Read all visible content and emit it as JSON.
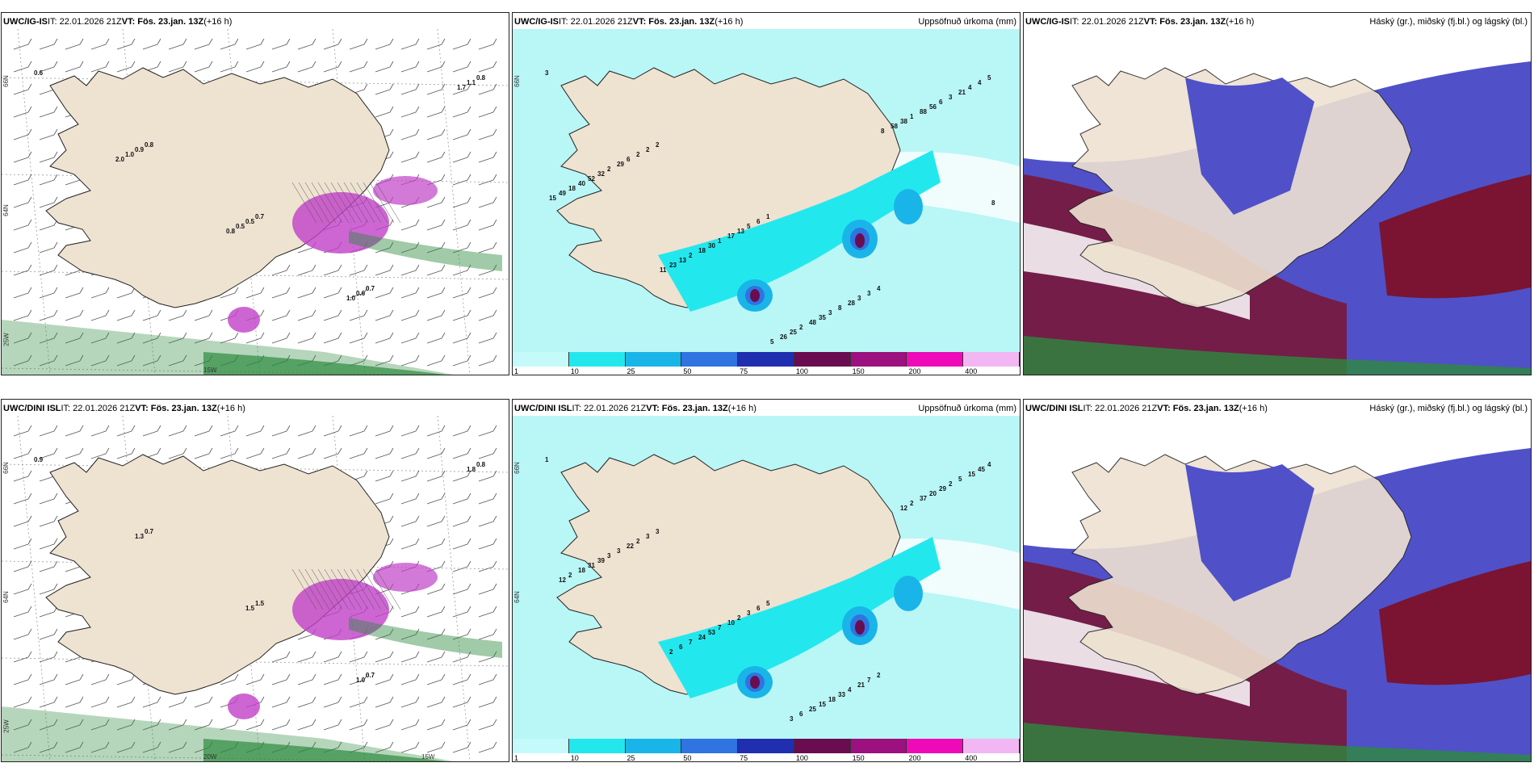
{
  "panels": [
    {
      "model": "UWC/IG-IS",
      "it": " IT: 22.01.2026 21Z ",
      "vt": "VT: Fös. 23.jan. 13Z",
      "lead": " (+16 h)",
      "right_label": "",
      "kind": "wind",
      "lat_labels": [
        "66N",
        "64N",
        "25W"
      ],
      "lon_labels": [
        "15W"
      ],
      "values": [
        "0.6",
        "0.8",
        "0.7",
        "0.7",
        "0.8",
        "0.9",
        "0.5",
        "0.6",
        "1.1",
        "1.0",
        "0.5",
        "1.0",
        "1.7",
        "2.0",
        "0.8"
      ]
    },
    {
      "model": "UWC/IG-IS",
      "it": " IT: 22.01.2026 21Z ",
      "vt": "VT: Fös. 23.jan. 13Z",
      "lead": " (+16 h)",
      "right_label": "Uppsöfnuð úrkoma (mm)",
      "kind": "precip",
      "lat_labels": [
        "66N"
      ],
      "lon_labels": [],
      "values": [
        "3",
        "2",
        "1",
        "4",
        "5",
        "2",
        "6",
        "3",
        "4",
        "2",
        "5",
        "3",
        "4",
        "6",
        "13",
        "28",
        "21",
        "29",
        "17",
        "8",
        "3",
        "2",
        "1",
        "3",
        "6",
        "32",
        "30",
        "35",
        "56",
        "52",
        "18",
        "48",
        "88",
        "40",
        "2",
        "2",
        "1",
        "18",
        "13",
        "25",
        "38",
        "49",
        "23",
        "26",
        "58",
        "15",
        "11",
        "5",
        "8",
        "8"
      ]
    },
    {
      "model": "UWC/IG-IS",
      "it": " IT: 22.01.2026 21Z ",
      "vt": "VT: Fös. 23.jan. 13Z",
      "lead": " (+16 h)",
      "right_label": "Háský (gr.), miðský (fj.bl.) og lágský (bl.)",
      "kind": "cloud",
      "lat_labels": [],
      "lon_labels": [],
      "values": []
    },
    {
      "model": "UWC/DINI ISL",
      "it": " IT: 22.01.2026 21Z ",
      "vt": "VT: Fös. 23.jan. 13Z",
      "lead": " (+16 h)",
      "right_label": "",
      "kind": "wind",
      "lat_labels": [
        "66N",
        "64N",
        "25W"
      ],
      "lon_labels": [
        "20W",
        "15W"
      ],
      "values": [
        "0.9",
        "0.7",
        "1.5",
        "0.7",
        "0.8",
        "1.3",
        "1.5",
        "1.0",
        "1.8"
      ]
    },
    {
      "model": "UWC/DINI ISL",
      "it": " IT: 22.01.2026 21Z ",
      "vt": "VT: Fös. 23.jan. 13Z",
      "lead": " (+16 h)",
      "right_label": "Uppsöfnuð úrkoma (mm)",
      "kind": "precip",
      "lat_labels": [
        "66N",
        "64N"
      ],
      "lon_labels": [],
      "values": [
        "1",
        "3",
        "5",
        "2",
        "4",
        "3",
        "6",
        "7",
        "45",
        "2",
        "3",
        "21",
        "15",
        "22",
        "2",
        "4",
        "5",
        "3",
        "10",
        "33",
        "2",
        "3",
        "7",
        "18",
        "29",
        "39",
        "53",
        "15",
        "20",
        "31",
        "24",
        "25",
        "37",
        "18",
        "7",
        "6",
        "2",
        "2",
        "6",
        "3",
        "12",
        "12",
        "2"
      ]
    },
    {
      "model": "UWC/DINI ISL",
      "it": " IT: 22.01.2026 21Z ",
      "vt": "VT: Fös. 23.jan. 13Z",
      "lead": " (+16 h)",
      "right_label": "Háský (gr.), miðský (fj.bl.) og lágský (bl.)",
      "kind": "cloud",
      "lat_labels": [],
      "lon_labels": [],
      "values": []
    }
  ],
  "colorbar": {
    "ticks": [
      "1",
      "10",
      "25",
      "50",
      "75",
      "100",
      "150",
      "200",
      "400"
    ],
    "colors": [
      "#c4fafa",
      "#22e8ee",
      "#19b5e8",
      "#2f74e0",
      "#1f2fb0",
      "#6a0c50",
      "#9c1080",
      "#ee0ab8",
      "#f2b6f2"
    ]
  },
  "colors": {
    "land": "#eee2d1",
    "cyan_light": "#b9f6f6",
    "cyan": "#22e8ee",
    "blue": "#5051c8",
    "maroon": "#7a1432",
    "green": "#2d8a3e",
    "magenta": "#c040c8"
  }
}
